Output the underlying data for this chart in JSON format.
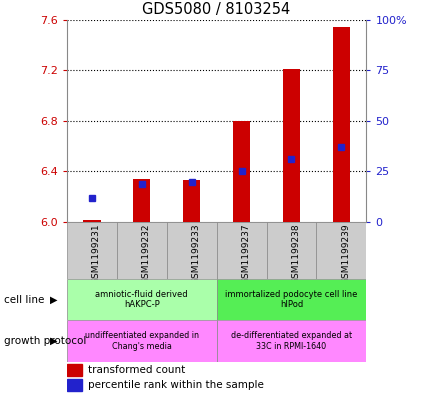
{
  "title": "GDS5080 / 8103254",
  "samples": [
    "GSM1199231",
    "GSM1199232",
    "GSM1199233",
    "GSM1199237",
    "GSM1199238",
    "GSM1199239"
  ],
  "transformed_count_base": 6.0,
  "transformed_count_top": [
    6.02,
    6.34,
    6.33,
    6.8,
    7.21,
    7.54
  ],
  "percentile_rank": [
    12,
    19,
    20,
    25,
    31,
    37
  ],
  "ylim_left": [
    6.0,
    7.6
  ],
  "ylim_right": [
    0,
    100
  ],
  "yticks_left": [
    6.0,
    6.4,
    6.8,
    7.2,
    7.6
  ],
  "yticks_right": [
    0,
    25,
    50,
    75,
    100
  ],
  "ytick_labels_right": [
    "0",
    "25",
    "50",
    "75",
    "100%"
  ],
  "bar_color": "#cc0000",
  "dot_color": "#2222cc",
  "left_tick_color": "#cc0000",
  "right_tick_color": "#2222cc",
  "cell_line_groups": [
    {
      "label": "amniotic-fluid derived\nhAKPC-P",
      "start": 0,
      "end": 3,
      "color": "#aaffaa"
    },
    {
      "label": "immortalized podocyte cell line\nhIPod",
      "start": 3,
      "end": 6,
      "color": "#55ee55"
    }
  ],
  "growth_protocol_groups": [
    {
      "label": "undiffeentiated expanded in\nChang's media",
      "start": 0,
      "end": 3,
      "color": "#ff88ff"
    },
    {
      "label": "de-differentiated expanded at\n33C in RPMI-1640",
      "start": 3,
      "end": 6,
      "color": "#ff88ff"
    }
  ],
  "cell_line_label": "cell line",
  "growth_protocol_label": "growth protocol",
  "legend_bar_label": "transformed count",
  "legend_dot_label": "percentile rank within the sample",
  "bar_width": 0.35,
  "sample_box_color": "#cccccc",
  "sample_box_edge_color": "#888888"
}
